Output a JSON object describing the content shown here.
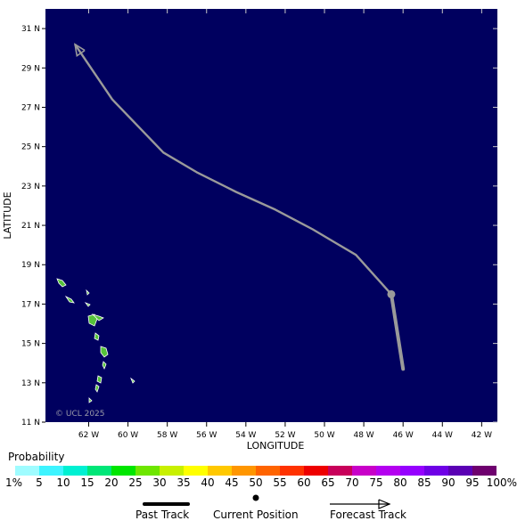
{
  "map": {
    "x_axis_title": "LONGITUDE",
    "y_axis_title": "LATITUDE",
    "copyright": "© UCL 2025",
    "ocean_color": "#00005f",
    "land_color": "#55c23a",
    "x_ticks": [
      "62 W",
      "60 W",
      "58 W",
      "56 W",
      "54 W",
      "52 W",
      "50 W",
      "48 W",
      "46 W",
      "44 W",
      "42 W"
    ],
    "y_ticks": [
      "31 N",
      "29 N",
      "27 N",
      "25 N",
      "23 N",
      "21 N",
      "19 N",
      "17 N",
      "15 N",
      "13 N",
      "11 N"
    ]
  },
  "track": {
    "color": "#9a9a9a",
    "past_track": [
      {
        "lon": -46.0,
        "lat": 13.7
      },
      {
        "lon": -46.6,
        "lat": 17.5
      }
    ],
    "current_position": {
      "lon": -46.6,
      "lat": 17.5
    },
    "forecast_track": [
      {
        "lon": -46.6,
        "lat": 17.5
      },
      {
        "lon": -48.4,
        "lat": 19.5
      },
      {
        "lon": -50.6,
        "lat": 20.8
      },
      {
        "lon": -52.5,
        "lat": 21.8
      },
      {
        "lon": -54.5,
        "lat": 22.7
      },
      {
        "lon": -56.5,
        "lat": 23.7
      },
      {
        "lon": -58.2,
        "lat": 24.7
      },
      {
        "lon": -60.8,
        "lat": 27.4
      },
      {
        "lon": -62.7,
        "lat": 30.2
      }
    ]
  },
  "legend": {
    "title": "Probability",
    "labels": [
      "1%",
      "5",
      "10",
      "15",
      "20",
      "25",
      "30",
      "35",
      "40",
      "45",
      "50",
      "55",
      "60",
      "65",
      "70",
      "75",
      "80",
      "85",
      "90",
      "95",
      "100%"
    ],
    "colors": [
      "#9ffcff",
      "#3df4ff",
      "#00f0d2",
      "#00e678",
      "#00e600",
      "#6ee600",
      "#c8f000",
      "#ffff00",
      "#ffc800",
      "#ff9600",
      "#ff6400",
      "#ff3200",
      "#ee0000",
      "#c8005a",
      "#c800c8",
      "#b400f0",
      "#9600ff",
      "#6e00e6",
      "#5a00b4",
      "#6e006e"
    ],
    "past_track_label": "Past Track",
    "current_position_label": "Current Position",
    "forecast_track_label": "Forecast Track"
  }
}
